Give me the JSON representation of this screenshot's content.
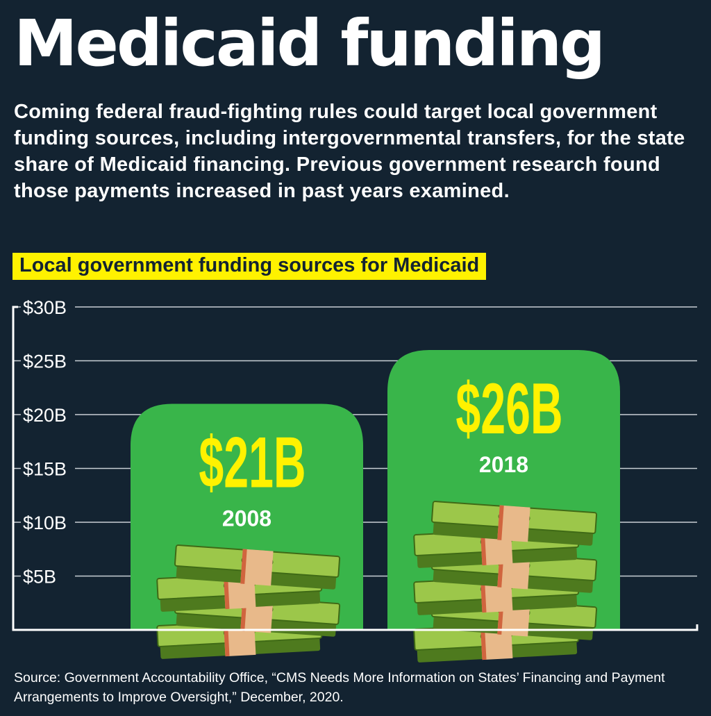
{
  "title": "Medicaid funding",
  "subtitle": "Coming federal fraud-fighting rules could target local government funding sources, including intergovernmental transfers, for the state share of Medicaid financing. Previous government research found those payments increased in past years examined.",
  "chart_data": {
    "type": "bar",
    "title": "Local government funding sources for Medicaid",
    "categories": [
      "2008",
      "2018"
    ],
    "values": [
      21,
      26
    ],
    "data_labels": [
      "$21B",
      "$26B"
    ],
    "unit": "billion USD",
    "ylim": [
      0,
      30
    ],
    "yticks": [
      5,
      10,
      15,
      20,
      25,
      30
    ],
    "ytick_labels": [
      "$5B",
      "$10B",
      "$15B",
      "$20B",
      "$25B",
      "$30B"
    ],
    "grid": true,
    "legend": "none",
    "colors": {
      "bar": "#39b54a",
      "value_label": "#fff200",
      "background": "#132331",
      "heading_bg": "#fff200"
    },
    "decoration": "money-stack-icon"
  },
  "source": "Source: Government Accountability Office, “CMS Needs More Information on States’ Financing and Payment Arrangements to Improve Oversight,” December, 2020."
}
